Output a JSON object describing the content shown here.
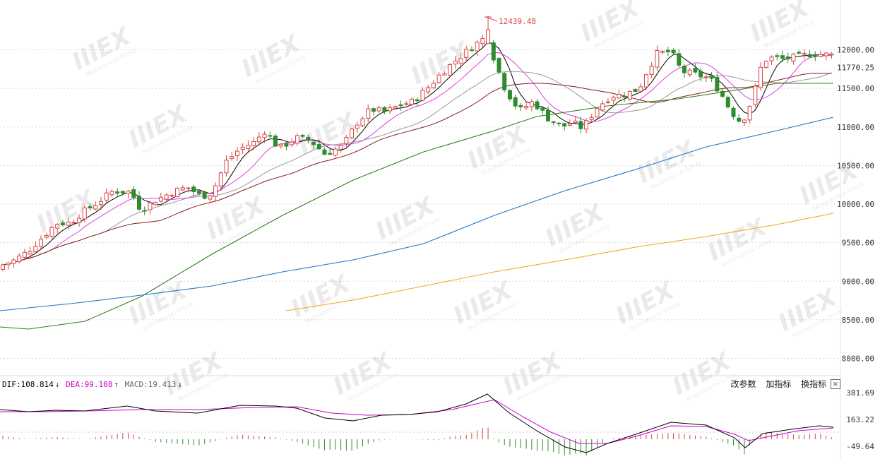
{
  "chart_data": [
    {
      "type": "candlestick",
      "title": "",
      "price_axis": {
        "ticks": [
          "12000.00",
          "11500.00",
          "11000.00",
          "10500.00",
          "10000.00",
          "9500.00",
          "9000.00",
          "8500.00",
          "8000.00"
        ],
        "last_price_label": "11770.25",
        "ylim": [
          7860,
          12540
        ]
      },
      "annotations": {
        "high_label": "12439.48",
        "high_value": 12439.48
      },
      "moving_averages": [
        {
          "color": "#000000"
        },
        {
          "color": "#dd44dd"
        },
        {
          "color": "#999999"
        },
        {
          "color": "#8b1a1a"
        },
        {
          "color": "#2e7d1e"
        },
        {
          "color": "#1f78c8"
        },
        {
          "color": "#f5a623"
        }
      ],
      "colors": {
        "up": "#d94444",
        "down": "#2e8b2e"
      },
      "grid": true
    },
    {
      "type": "macd",
      "legend": {
        "dif_label": "DIF:108.814",
        "dea_label": "DEA:99.108",
        "macd_label": "MACD:19.413",
        "dif_arrow": "↓",
        "dea_arrow": "↑",
        "macd_arrow": "↓"
      },
      "axis": {
        "ticks": [
          "381.69",
          "163.22",
          "-49.64"
        ]
      },
      "colors": {
        "dif": "#000000",
        "dea": "#cc00cc",
        "hist_up": "#d94444",
        "hist_down": "#2e8b2e"
      }
    }
  ],
  "toolbar": {
    "params_label": "改参数",
    "add_indicator_label": "加指标",
    "switch_indicator_label": "换指标",
    "close_label": "×"
  },
  "watermark": {
    "text": "IIIEX",
    "sub": "Multinational Group"
  }
}
